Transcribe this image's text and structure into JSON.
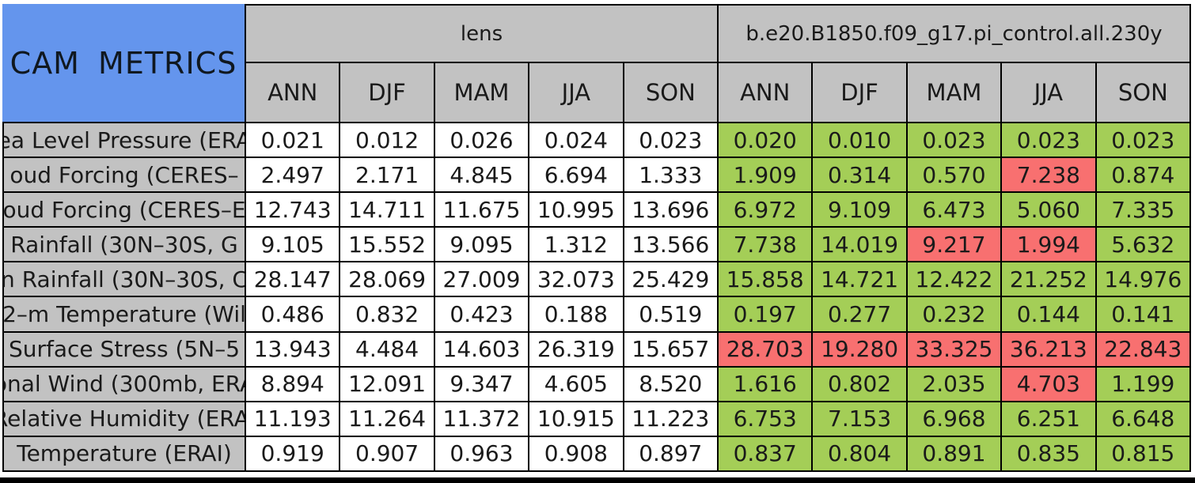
{
  "chart_data": {
    "type": "table",
    "title": "CAM METRICS",
    "column_groups": [
      "lens",
      "b.e20.B1850.f09_g17.pi_control.all.230y"
    ],
    "seasons": [
      "ANN",
      "DJF",
      "MAM",
      "JJA",
      "SON"
    ],
    "rows": [
      {
        "label": "ea Level Pressure (ERA",
        "lens": [
          "0.021",
          "0.012",
          "0.026",
          "0.024",
          "0.023"
        ],
        "control": [
          "0.020",
          "0.010",
          "0.023",
          "0.023",
          "0.023"
        ],
        "control_flags": [
          "good",
          "good",
          "good",
          "good",
          "good"
        ]
      },
      {
        "label": "oud Forcing (CERES–",
        "lens": [
          "2.497",
          "2.171",
          "4.845",
          "6.694",
          "1.333"
        ],
        "control": [
          "1.909",
          "0.314",
          "0.570",
          "7.238",
          "0.874"
        ],
        "control_flags": [
          "good",
          "good",
          "good",
          "bad",
          "good"
        ]
      },
      {
        "label": "oud Forcing (CERES–E",
        "lens": [
          "12.743",
          "14.711",
          "11.675",
          "10.995",
          "13.696"
        ],
        "control": [
          "6.972",
          "9.109",
          "6.473",
          "5.060",
          "7.335"
        ],
        "control_flags": [
          "good",
          "good",
          "good",
          "good",
          "good"
        ]
      },
      {
        "label": "Rainfall (30N–30S, G",
        "lens": [
          "9.105",
          "15.552",
          "9.095",
          "1.312",
          "13.566"
        ],
        "control": [
          "7.738",
          "14.019",
          "9.217",
          "1.994",
          "5.632"
        ],
        "control_flags": [
          "good",
          "good",
          "bad",
          "bad",
          "good"
        ]
      },
      {
        "label": "n Rainfall (30N–30S, C",
        "lens": [
          "28.147",
          "28.069",
          "27.009",
          "32.073",
          "25.429"
        ],
        "control": [
          "15.858",
          "14.721",
          "12.422",
          "21.252",
          "14.976"
        ],
        "control_flags": [
          "good",
          "good",
          "good",
          "good",
          "good"
        ]
      },
      {
        "label": "2–m Temperature (Wil",
        "lens": [
          "0.486",
          "0.832",
          "0.423",
          "0.188",
          "0.519"
        ],
        "control": [
          "0.197",
          "0.277",
          "0.232",
          "0.144",
          "0.141"
        ],
        "control_flags": [
          "good",
          "good",
          "good",
          "good",
          "good"
        ]
      },
      {
        "label": "Surface Stress (5N–5",
        "lens": [
          "13.943",
          "4.484",
          "14.603",
          "26.319",
          "15.657"
        ],
        "control": [
          "28.703",
          "19.280",
          "33.325",
          "36.213",
          "22.843"
        ],
        "control_flags": [
          "bad",
          "bad",
          "bad",
          "bad",
          "bad"
        ]
      },
      {
        "label": "onal Wind (300mb, ERA",
        "lens": [
          "8.894",
          "12.091",
          "9.347",
          "4.605",
          "8.520"
        ],
        "control": [
          "1.616",
          "0.802",
          "2.035",
          "4.703",
          "1.199"
        ],
        "control_flags": [
          "good",
          "good",
          "good",
          "bad",
          "good"
        ]
      },
      {
        "label": "Relative Humidity (ERAI",
        "lens": [
          "11.193",
          "11.264",
          "11.372",
          "10.915",
          "11.223"
        ],
        "control": [
          "6.753",
          "7.153",
          "6.968",
          "6.251",
          "6.648"
        ],
        "control_flags": [
          "good",
          "good",
          "good",
          "good",
          "good"
        ]
      },
      {
        "label": "Temperature (ERAI)",
        "lens": [
          "0.919",
          "0.907",
          "0.963",
          "0.908",
          "0.897"
        ],
        "control": [
          "0.837",
          "0.804",
          "0.891",
          "0.835",
          "0.815"
        ],
        "control_flags": [
          "good",
          "good",
          "good",
          "good",
          "good"
        ]
      }
    ]
  },
  "colors": {
    "title_bg": "#6495ED",
    "header_bg": "#C2C2C2",
    "cell_good": "#A4CE57",
    "cell_bad": "#F87070",
    "cell_neutral": "#FFFFFF",
    "grid_border": "#000000",
    "text": "#1A1A1A"
  }
}
